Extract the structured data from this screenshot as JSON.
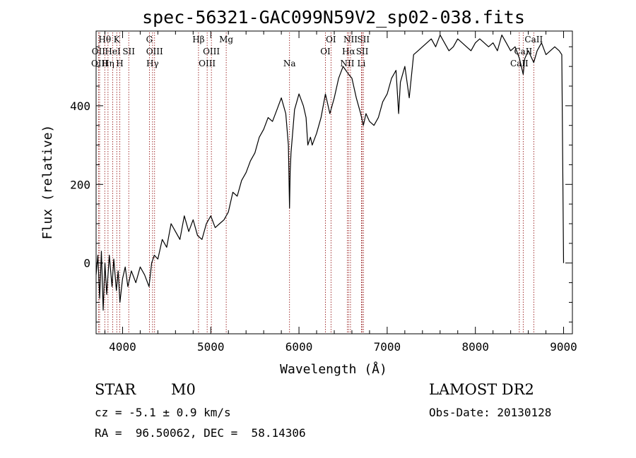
{
  "chart_data": {
    "type": "line",
    "title": "spec-56321-GAC099N59V2_sp02-038.fits",
    "xlabel": "Wavelength (Å)",
    "ylabel": "Flux (relative)",
    "xlim": [
      3700,
      9100
    ],
    "ylim": [
      -180,
      590
    ],
    "x_ticks": [
      4000,
      5000,
      6000,
      7000,
      8000,
      9000
    ],
    "y_ticks": [
      0,
      200,
      400
    ],
    "x_tick_labels": [
      "4000",
      "5000",
      "6000",
      "7000",
      "8000",
      "9000"
    ],
    "y_tick_labels": [
      "0",
      "200",
      "400"
    ],
    "line_color": "#000000",
    "line_marker_color": "#8b0000",
    "series": [
      {
        "x": [
          3700,
          3720,
          3740,
          3760,
          3780,
          3800,
          3820,
          3850,
          3880,
          3900,
          3930,
          3950,
          3970,
          4000,
          4030,
          4060,
          4100,
          4150,
          4200,
          4250,
          4300,
          4330,
          4360,
          4400,
          4450,
          4500,
          4550,
          4600,
          4650,
          4700,
          4750,
          4800,
          4850,
          4900,
          4950,
          5000,
          5050,
          5100,
          5150,
          5200,
          5250,
          5300,
          5350,
          5400,
          5450,
          5500,
          5550,
          5600,
          5650,
          5700,
          5750,
          5800,
          5850,
          5880,
          5893,
          5900,
          5910,
          5950,
          6000,
          6050,
          6080,
          6100,
          6130,
          6150,
          6200,
          6250,
          6300,
          6350,
          6400,
          6450,
          6500,
          6563,
          6600,
          6650,
          6700,
          6730,
          6760,
          6800,
          6850,
          6900,
          6950,
          7000,
          7050,
          7100,
          7130,
          7150,
          7200,
          7250,
          7300,
          7350,
          7400,
          7450,
          7500,
          7550,
          7600,
          7650,
          7700,
          7750,
          7800,
          7850,
          7900,
          7950,
          8000,
          8050,
          8100,
          8150,
          8200,
          8250,
          8300,
          8350,
          8400,
          8450,
          8500,
          8542,
          8560,
          8600,
          8662,
          8700,
          8750,
          8800,
          8850,
          8900,
          8950,
          8980,
          9000
        ],
        "y": [
          -30,
          20,
          -90,
          30,
          -120,
          0,
          -80,
          20,
          -60,
          10,
          -70,
          -20,
          -100,
          -40,
          -10,
          -60,
          -20,
          -50,
          -10,
          -30,
          -60,
          0,
          20,
          10,
          60,
          40,
          100,
          80,
          60,
          120,
          80,
          110,
          70,
          60,
          100,
          120,
          90,
          100,
          110,
          130,
          180,
          170,
          210,
          230,
          260,
          280,
          320,
          340,
          370,
          360,
          390,
          420,
          380,
          300,
          140,
          230,
          280,
          390,
          430,
          400,
          370,
          300,
          320,
          300,
          330,
          370,
          430,
          380,
          420,
          470,
          500,
          480,
          470,
          420,
          380,
          350,
          380,
          360,
          350,
          370,
          410,
          430,
          470,
          490,
          380,
          460,
          500,
          420,
          530,
          540,
          550,
          560,
          570,
          550,
          580,
          560,
          540,
          550,
          570,
          560,
          550,
          540,
          560,
          570,
          560,
          550,
          560,
          540,
          580,
          560,
          540,
          550,
          520,
          480,
          520,
          540,
          510,
          540,
          560,
          530,
          540,
          550,
          540,
          530,
          0
        ]
      }
    ],
    "lines": [
      {
        "label": "Hθ",
        "x": 3798,
        "row": 0
      },
      {
        "label": "OII",
        "x": 3727,
        "row": 1
      },
      {
        "label": "OIII",
        "x": 3740,
        "row": 2
      },
      {
        "label": "K",
        "x": 3934,
        "row": 0
      },
      {
        "label": "HeI",
        "x": 3889,
        "row": 1
      },
      {
        "label": "Hη",
        "x": 3835,
        "row": 2
      },
      {
        "label": "SII",
        "x": 4070,
        "row": 1
      },
      {
        "label": "H",
        "x": 3968,
        "row": 2
      },
      {
        "label": "G",
        "x": 4304,
        "row": 0
      },
      {
        "label": "OIII",
        "x": 4363,
        "row": 1
      },
      {
        "label": "Hγ",
        "x": 4340,
        "row": 2
      },
      {
        "label": "Hβ",
        "x": 4861,
        "row": 0
      },
      {
        "label": "OIII",
        "x": 5007,
        "row": 1
      },
      {
        "label": "OIII",
        "x": 4959,
        "row": 2
      },
      {
        "label": "Mg",
        "x": 5175,
        "row": 0
      },
      {
        "label": "Na",
        "x": 5893,
        "row": 2
      },
      {
        "label": "OI",
        "x": 6363,
        "row": 0
      },
      {
        "label": "OI",
        "x": 6300,
        "row": 1
      },
      {
        "label": "NII",
        "x": 6584,
        "row": 0
      },
      {
        "label": "Hα",
        "x": 6563,
        "row": 1
      },
      {
        "label": "NII",
        "x": 6548,
        "row": 2
      },
      {
        "label": "SII",
        "x": 6731,
        "row": 0
      },
      {
        "label": "SII",
        "x": 6717,
        "row": 1
      },
      {
        "label": "Li",
        "x": 6708,
        "row": 2
      },
      {
        "label": "CaII",
        "x": 8662,
        "row": 0
      },
      {
        "label": "CaII",
        "x": 8542,
        "row": 1
      },
      {
        "label": "CaII",
        "x": 8498,
        "row": 2
      }
    ]
  },
  "info": {
    "class": "STAR",
    "subclass": "M0",
    "survey": "LAMOST DR2",
    "cz": "cz = -5.1 ± 0.9 km/s",
    "obs_date": "Obs-Date: 20130128",
    "radec": "RA =  96.50062, DEC =  58.14306"
  }
}
